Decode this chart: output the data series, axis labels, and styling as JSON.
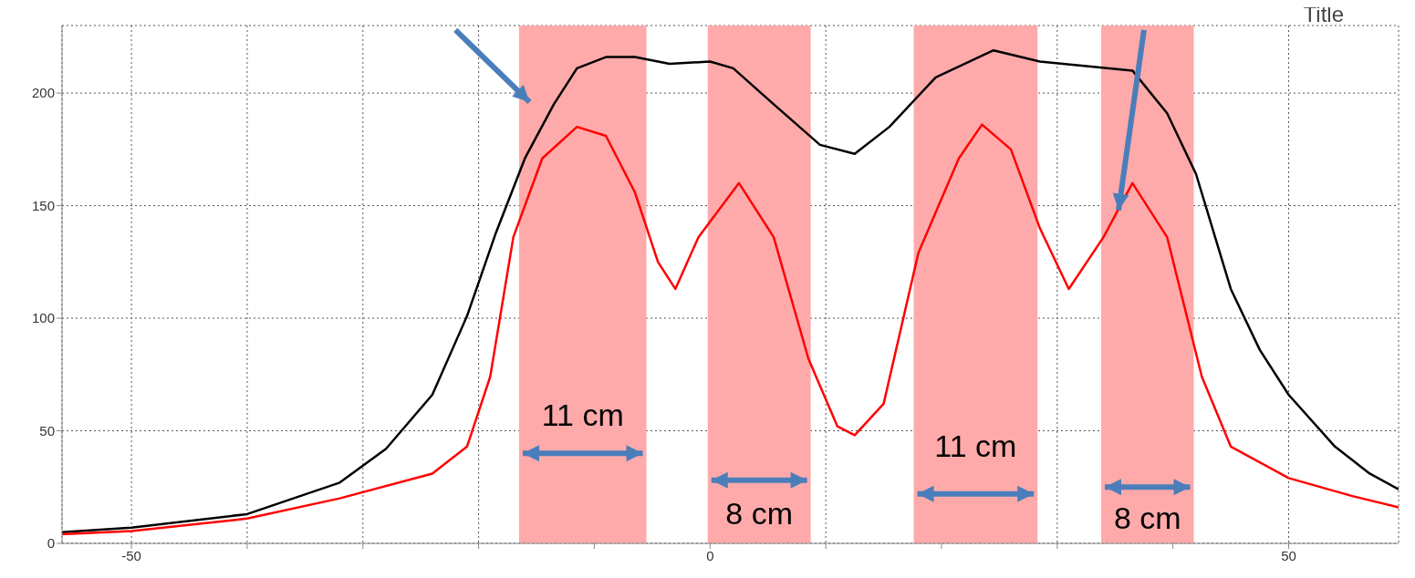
{
  "chart_data": {
    "type": "line",
    "title": "Title",
    "series": [
      {
        "color": "#000000",
        "x": [
          -56,
          -50,
          -40,
          -32,
          -28,
          -24,
          -21,
          -18.5,
          -16,
          -13.5,
          -11.5,
          -9,
          -6.5,
          -3.5,
          0,
          2,
          5.5,
          9.5,
          12.5,
          15.5,
          19.5,
          24.5,
          28.5,
          32.5,
          36.5,
          39.5,
          42,
          45,
          47.5,
          50,
          54,
          57,
          59.5
        ],
        "values": [
          5,
          7,
          13,
          27,
          42,
          66,
          101,
          138,
          171,
          195,
          211,
          216,
          216,
          213,
          214,
          211,
          195,
          177,
          173,
          185,
          207,
          219,
          214,
          212,
          210,
          191,
          164,
          113,
          86,
          66,
          43,
          31,
          24
        ]
      },
      {
        "color": "#ff0000",
        "x": [
          -56,
          -50,
          -40,
          -32,
          -24,
          -21,
          -19,
          -17,
          -14.5,
          -11.5,
          -9,
          -6.5,
          -4.5,
          -3,
          -1,
          2.5,
          5.5,
          8.5,
          11,
          12.5,
          15,
          18,
          21.5,
          23.5,
          26,
          28.5,
          31,
          34,
          36.5,
          39.5,
          42.5,
          45,
          50,
          55.5,
          59.5
        ],
        "values": [
          4,
          5.5,
          11,
          20,
          31,
          43,
          74,
          136,
          171,
          185,
          181,
          156,
          125,
          113,
          136,
          160,
          136,
          82,
          52,
          48,
          62,
          129,
          171,
          186,
          175,
          140,
          113,
          136,
          160,
          136,
          74,
          43,
          29,
          21,
          16
        ]
      }
    ],
    "xlim": [
      -56,
      59.5
    ],
    "ylim": [
      0,
      230
    ],
    "xticks": [
      -50,
      {
        "value": -40,
        "label": null
      },
      {
        "value": -30,
        "label": null
      },
      {
        "value": -20,
        "label": null
      },
      {
        "value": -10,
        "label": null
      },
      0,
      {
        "value": 10,
        "label": null
      },
      {
        "value": 20,
        "label": null
      },
      {
        "value": 30,
        "label": null
      },
      {
        "value": 40,
        "label": null
      },
      50
    ],
    "yticks": [
      0,
      50,
      100,
      150,
      200
    ],
    "grid": true,
    "bands": [
      {
        "axis": "x",
        "from": -16.5,
        "to": -5.5,
        "color": "#ffaaaa"
      },
      {
        "axis": "x",
        "from": -0.2,
        "to": 8.7,
        "color": "#ffaaaa"
      },
      {
        "axis": "x",
        "from": 17.6,
        "to": 28.3,
        "color": "#ffaaaa"
      },
      {
        "axis": "x",
        "from": 33.8,
        "to": 41.8,
        "color": "#ffaaaa"
      }
    ],
    "annotations": [
      "11 cm",
      "8 cm",
      "11 cm",
      "8 cm"
    ]
  }
}
